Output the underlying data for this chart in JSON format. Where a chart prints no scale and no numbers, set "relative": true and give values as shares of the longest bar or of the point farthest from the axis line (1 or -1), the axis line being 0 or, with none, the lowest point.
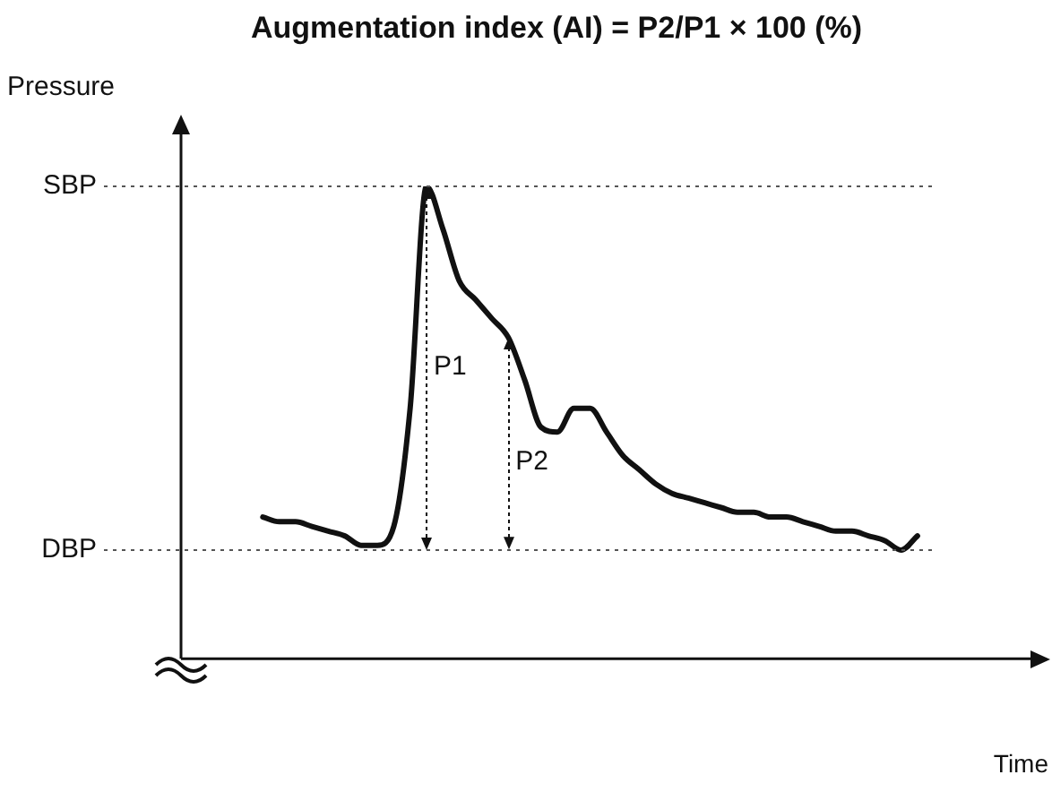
{
  "chart_data": {
    "type": "line",
    "relative": true,
    "title": "Augmentation index (AI) = P2/P1 × 100 (%)",
    "xlabel": "Time",
    "ylabel": "Pressure",
    "color": "#111111",
    "marker": "none",
    "legend": false,
    "categories": [
      null,
      null,
      null,
      null,
      null,
      null,
      null,
      null,
      null,
      null,
      null,
      null,
      null,
      null,
      null,
      null,
      null,
      null,
      null,
      null,
      null,
      null,
      null,
      null,
      null,
      null,
      null,
      null,
      null,
      null,
      null,
      null,
      null,
      null,
      null,
      null,
      null,
      null,
      null,
      null,
      null,
      null,
      null,
      null,
      null,
      null,
      null,
      null,
      null,
      null,
      null,
      null,
      null,
      null
    ],
    "values": [
      null,
      null,
      null,
      null,
      null,
      0.3,
      0.29,
      0.29,
      0.28,
      0.27,
      0.26,
      0.24,
      0.24,
      0.28,
      0.53,
      1.0,
      0.91,
      0.8,
      0.76,
      0.72,
      0.68,
      0.59,
      0.49,
      0.48,
      0.53,
      0.53,
      0.48,
      0.43,
      0.4,
      0.37,
      0.35,
      0.34,
      0.33,
      0.32,
      0.31,
      0.31,
      0.3,
      0.3,
      0.29,
      0.28,
      0.27,
      0.27,
      0.26,
      0.25,
      0.23,
      0.26,
      null,
      null,
      null,
      null,
      null,
      null,
      null,
      null
    ],
    "ref_lines": [
      {
        "axis": "y",
        "value": 1.0,
        "label": "SBP",
        "line_style": "dotted",
        "color": "#555555"
      },
      {
        "axis": "y",
        "value": 0.23,
        "label": "DBP",
        "line_style": "dotted",
        "color": "#555555"
      }
    ],
    "annotations": [
      "P1",
      "P2"
    ]
  }
}
